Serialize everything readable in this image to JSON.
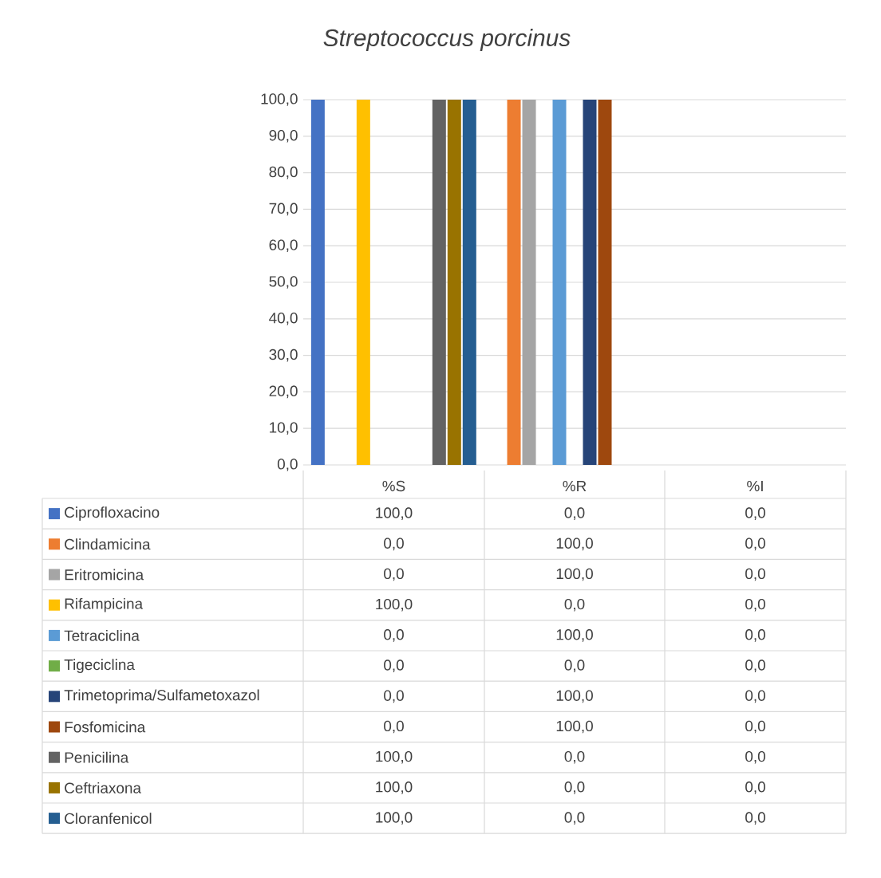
{
  "chart_data": {
    "type": "bar",
    "title": "Streptococcus porcinus",
    "categories": [
      "%S",
      "%R",
      "%I"
    ],
    "ylim": [
      0,
      100
    ],
    "yticks": [
      {
        "value": 0,
        "label": "0,0"
      },
      {
        "value": 10,
        "label": "10,0"
      },
      {
        "value": 20,
        "label": "20,0"
      },
      {
        "value": 30,
        "label": "30,0"
      },
      {
        "value": 40,
        "label": "40,0"
      },
      {
        "value": 50,
        "label": "50,0"
      },
      {
        "value": 60,
        "label": "60,0"
      },
      {
        "value": 70,
        "label": "70,0"
      },
      {
        "value": 80,
        "label": "80,0"
      },
      {
        "value": 90,
        "label": "90,0"
      },
      {
        "value": 100,
        "label": "100,0"
      }
    ],
    "grid": "y",
    "legend": "bottom",
    "series": [
      {
        "name": "Ciprofloxacino",
        "color": "#4472c4",
        "values": [
          100,
          0,
          0
        ],
        "value_labels": [
          "100,0",
          "0,0",
          "0,0"
        ]
      },
      {
        "name": "Clindamicina",
        "color": "#ed7d31",
        "values": [
          0,
          100,
          0
        ],
        "value_labels": [
          "0,0",
          "100,0",
          "0,0"
        ]
      },
      {
        "name": "Eritromicina",
        "color": "#a5a5a5",
        "values": [
          0,
          100,
          0
        ],
        "value_labels": [
          "0,0",
          "100,0",
          "0,0"
        ]
      },
      {
        "name": "Rifampicina",
        "color": "#ffc000",
        "values": [
          100,
          0,
          0
        ],
        "value_labels": [
          "100,0",
          "0,0",
          "0,0"
        ]
      },
      {
        "name": "Tetraciclina",
        "color": "#5b9bd5",
        "values": [
          0,
          100,
          0
        ],
        "value_labels": [
          "0,0",
          "100,0",
          "0,0"
        ]
      },
      {
        "name": "Tigeciclina",
        "color": "#70ad47",
        "values": [
          0,
          0,
          0
        ],
        "value_labels": [
          "0,0",
          "0,0",
          "0,0"
        ]
      },
      {
        "name": "Trimetoprima/Sulfametoxazol",
        "color": "#264478",
        "values": [
          0,
          100,
          0
        ],
        "value_labels": [
          "0,0",
          "100,0",
          "0,0"
        ]
      },
      {
        "name": "Fosfomicina",
        "color": "#9e480e",
        "values": [
          0,
          100,
          0
        ],
        "value_labels": [
          "0,0",
          "100,0",
          "0,0"
        ]
      },
      {
        "name": "Penicilina",
        "color": "#636363",
        "values": [
          100,
          0,
          0
        ],
        "value_labels": [
          "100,0",
          "0,0",
          "0,0"
        ]
      },
      {
        "name": "Ceftriaxona",
        "color": "#997300",
        "values": [
          100,
          0,
          0
        ],
        "value_labels": [
          "100,0",
          "0,0",
          "0,0"
        ]
      },
      {
        "name": "Cloranfenicol",
        "color": "#255e91",
        "values": [
          100,
          0,
          0
        ],
        "value_labels": [
          "100,0",
          "0,0",
          "0,0"
        ]
      }
    ]
  }
}
